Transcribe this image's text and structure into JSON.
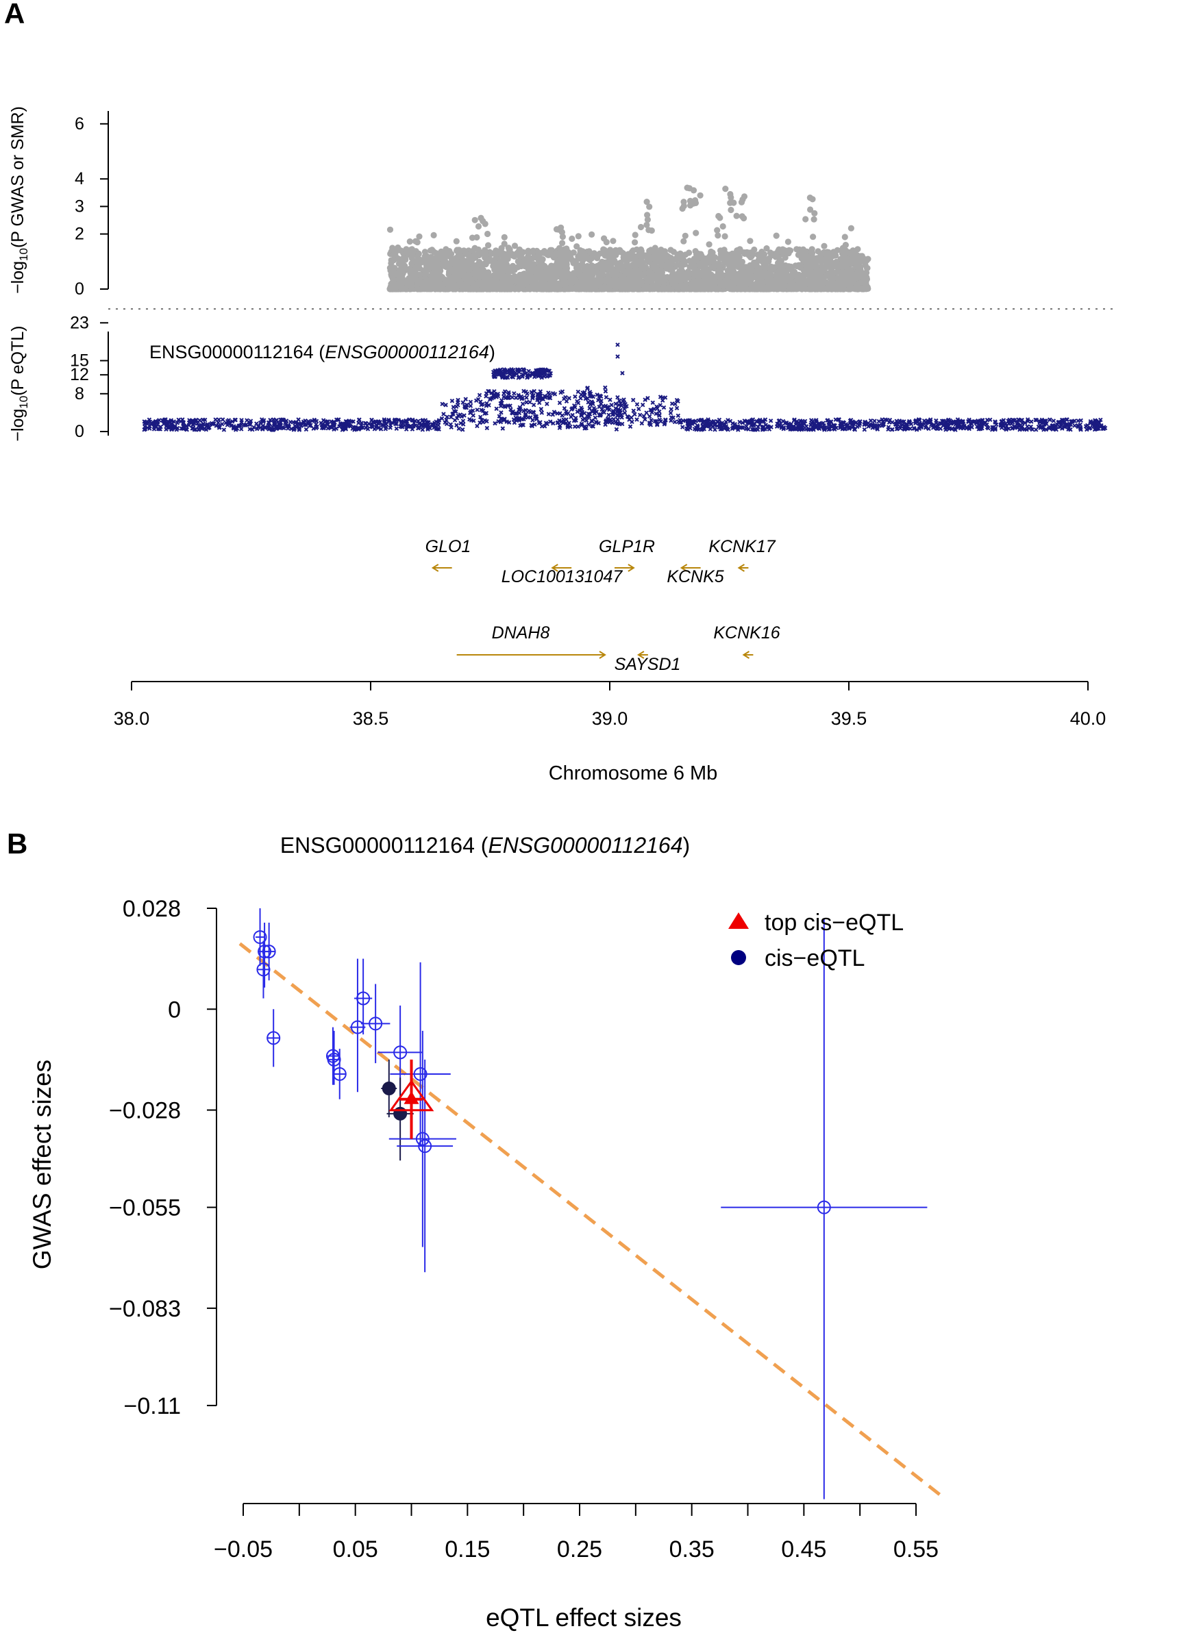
{
  "chart_data": [
    {
      "panel": "A",
      "type": "scatter",
      "subplots": [
        {
          "name": "gwas",
          "ylabel": {
            "main": "−log",
            "sub": "10",
            "rest": "(P GWAS or SMR)",
            "italic": "P"
          },
          "yticks": [
            0,
            2,
            3,
            4,
            6
          ],
          "ylim": [
            0,
            6
          ],
          "color": "#a8a8a8",
          "x_range": [
            38.54,
            39.54
          ],
          "peaks": [
            {
              "x": 38.73,
              "y": 2.7
            },
            {
              "x": 38.9,
              "y": 2.4
            },
            {
              "x": 39.07,
              "y": 3.2
            },
            {
              "x": 39.16,
              "y": 3.9
            },
            {
              "x": 39.18,
              "y": 3.7
            },
            {
              "x": 39.23,
              "y": 2.8
            },
            {
              "x": 39.25,
              "y": 3.7
            },
            {
              "x": 39.27,
              "y": 3.4
            },
            {
              "x": 39.42,
              "y": 3.5
            },
            {
              "x": 39.5,
              "y": 2.2
            }
          ]
        },
        {
          "name": "eqtl",
          "ylabel": {
            "main": "−log",
            "sub": "10",
            "rest": "(P eQTL)",
            "italic": "P"
          },
          "yticks": [
            0,
            8,
            12,
            15,
            23
          ],
          "ylim": [
            0,
            23
          ],
          "color": "#1a1a80",
          "marker": "x",
          "gene_label": "ENSG00000112164",
          "gene_label_italic": "ENSG00000112164",
          "x_range": [
            38.03,
            40.04
          ],
          "peaks": [
            {
              "x": 39.02,
              "y": 18
            },
            {
              "x": 39.02,
              "y": 15.5
            },
            {
              "x": 39.03,
              "y": 12
            },
            {
              "x": 38.8,
              "y": 12.5
            },
            {
              "x": 38.85,
              "y": 12
            },
            {
              "x": 38.95,
              "y": 7.5
            }
          ]
        }
      ],
      "genes": [
        {
          "name": "GLO1",
          "start": 38.63,
          "end": 38.67,
          "strand": "-",
          "row": 1
        },
        {
          "name": "LOC100131047",
          "start": 38.88,
          "end": 38.92,
          "strand": "-",
          "row": 1
        },
        {
          "name": "GLP1R",
          "start": 39.01,
          "end": 39.05,
          "strand": "+",
          "row": 1
        },
        {
          "name": "KCNK5",
          "start": 39.15,
          "end": 39.19,
          "strand": "-",
          "row": 1
        },
        {
          "name": "KCNK17",
          "start": 39.27,
          "end": 39.29,
          "strand": "-",
          "row": 1
        },
        {
          "name": "DNAH8",
          "start": 38.68,
          "end": 38.99,
          "strand": "+",
          "row": 2
        },
        {
          "name": "SAYSD1",
          "start": 39.06,
          "end": 39.08,
          "strand": "-",
          "row": 2
        },
        {
          "name": "KCNK16",
          "start": 39.28,
          "end": 39.3,
          "strand": "-",
          "row": 2
        }
      ],
      "xaxis": {
        "label": "Chromosome 6 Mb",
        "ticks": [
          "38.0",
          "38.5",
          "39.0",
          "39.5",
          "40.0"
        ],
        "xlim": [
          38.0,
          40.0
        ]
      },
      "gene_color": "#b8860b"
    },
    {
      "panel": "B",
      "type": "scatter",
      "title": "ENSG00000112164",
      "title_italic": "ENSG00000112164",
      "xlabel": "eQTL effect sizes",
      "ylabel": "GWAS effect sizes",
      "xlim": [
        -0.05,
        0.55
      ],
      "ylim": [
        -0.11,
        0.028
      ],
      "xticks": [
        "−0.05",
        "0.05",
        "0.15",
        "0.25",
        "0.35",
        "0.45",
        "0.55"
      ],
      "xtick_values": [
        -0.05,
        0.05,
        0.15,
        0.25,
        0.35,
        0.45,
        0.55
      ],
      "xminor": [
        0.0,
        0.1,
        0.2,
        0.3,
        0.4,
        0.5
      ],
      "yticks": [
        "0.028",
        "0",
        "−0.028",
        "−0.055",
        "−0.083",
        "−0.11"
      ],
      "ytick_values": [
        0.028,
        0,
        -0.028,
        -0.055,
        -0.083,
        -0.11
      ],
      "legend": [
        {
          "label": "top cis−eQTL",
          "marker": "triangle",
          "color": "#ee0000"
        },
        {
          "label": "cis−eQTL",
          "marker": "circle",
          "color": "#000080"
        }
      ],
      "fit_line": {
        "intercept": 0.0052,
        "slope": -0.245,
        "color": "#f0a050"
      },
      "points": [
        {
          "x": -0.035,
          "y": 0.02,
          "xerr": 0.004,
          "ylo": 0.012,
          "yhi": 0.028
        },
        {
          "x": -0.032,
          "y": 0.011,
          "xerr": 0.006,
          "ylo": 0.003,
          "yhi": 0.019
        },
        {
          "x": -0.031,
          "y": 0.016,
          "xerr": 0.006,
          "ylo": 0.006,
          "yhi": 0.024
        },
        {
          "x": -0.027,
          "y": 0.016,
          "xerr": 0.006,
          "ylo": 0.008,
          "yhi": 0.024
        },
        {
          "x": -0.023,
          "y": -0.008,
          "xerr": 0.006,
          "ylo": -0.016,
          "yhi": 0.0
        },
        {
          "x": 0.03,
          "y": -0.013,
          "xerr": 0.006,
          "ylo": -0.021,
          "yhi": -0.005
        },
        {
          "x": 0.031,
          "y": -0.014,
          "xerr": 0.006,
          "ylo": -0.021,
          "yhi": -0.006
        },
        {
          "x": 0.036,
          "y": -0.018,
          "xerr": 0.006,
          "ylo": -0.025,
          "yhi": -0.011
        },
        {
          "x": 0.052,
          "y": -0.005,
          "xerr": 0.007,
          "ylo": -0.023,
          "yhi": 0.014
        },
        {
          "x": 0.057,
          "y": 0.003,
          "xerr": 0.008,
          "ylo": -0.007,
          "yhi": 0.014
        },
        {
          "x": 0.068,
          "y": -0.004,
          "xerr": 0.013,
          "ylo": -0.015,
          "yhi": 0.007
        },
        {
          "x": 0.08,
          "y": -0.022,
          "xerr": 0.007,
          "ylo": -0.03,
          "yhi": -0.014,
          "dark": true
        },
        {
          "x": 0.09,
          "y": -0.012,
          "xerr": 0.02,
          "ylo": -0.024,
          "yhi": 0.001
        },
        {
          "x": 0.09,
          "y": -0.029,
          "xerr": 0.012,
          "ylo": -0.042,
          "yhi": -0.019,
          "dark": true
        },
        {
          "x": 0.108,
          "y": -0.018,
          "xerr": 0.027,
          "ylo": -0.038,
          "yhi": 0.013
        },
        {
          "x": 0.11,
          "y": -0.036,
          "xerr": 0.03,
          "ylo": -0.066,
          "yhi": -0.006
        },
        {
          "x": 0.112,
          "y": -0.038,
          "xerr": 0.025,
          "ylo": -0.073,
          "yhi": -0.014
        },
        {
          "x": 0.468,
          "y": -0.055,
          "xerr": 0.092,
          "ylo": -0.136,
          "yhi": 0.025
        }
      ],
      "top_point": {
        "x": 0.1,
        "y": -0.025,
        "xerr": 0.01,
        "ylo": -0.036,
        "yhi": -0.014
      }
    }
  ],
  "panel_labels": {
    "a": "A",
    "b": "B"
  }
}
